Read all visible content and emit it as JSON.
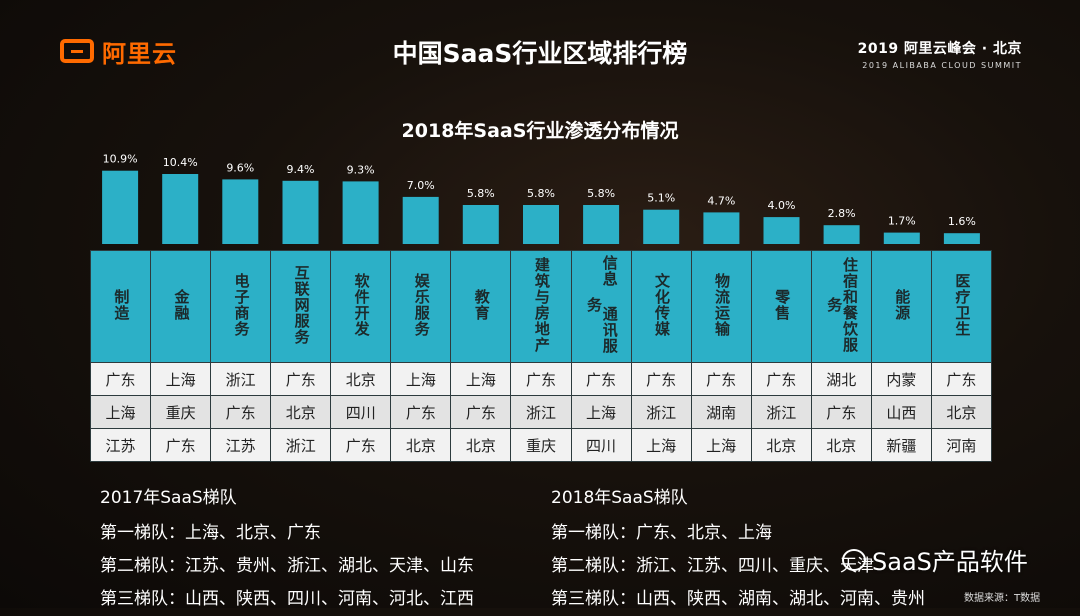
{
  "header": {
    "logo_text": "阿里云",
    "title": "中国SaaS行业区域排行榜",
    "summit_line1": "2019 阿里云峰会 · 北京",
    "summit_line2": "2019 ALIBABA CLOUD SUMMIT"
  },
  "colors": {
    "bar": "#2cb0c7",
    "accent": "#ff6a00"
  },
  "chart_data": {
    "type": "bar",
    "title": "2018年SaaS行业渗透分布情况",
    "categories": [
      "制造",
      "金融",
      "电子商务",
      "互联网服务",
      "软件开发",
      "娱乐服务",
      "教育",
      "建筑与房地产",
      "信息 通讯服务",
      "文化传媒",
      "物流运输",
      "零售",
      "住宿和餐饮服务",
      "能源",
      "医疗卫生"
    ],
    "values": [
      10.9,
      10.4,
      9.6,
      9.4,
      9.3,
      7.0,
      5.8,
      5.8,
      5.8,
      5.1,
      4.7,
      4.0,
      2.8,
      1.7,
      1.6
    ],
    "value_labels": [
      "10.9%",
      "10.4%",
      "9.6%",
      "9.4%",
      "9.3%",
      "7.0%",
      "5.8%",
      "5.8%",
      "5.8%",
      "5.1%",
      "4.7%",
      "4.0%",
      "2.8%",
      "1.7%",
      "1.6%"
    ],
    "unit": "%",
    "ylim": [
      0,
      11
    ],
    "grid": false
  },
  "table": {
    "headers": [
      "制造",
      "金融",
      "电子商务",
      "互联网服务",
      "软件开发",
      "娱乐服务",
      "教育",
      "建筑与房地产",
      "信息 通讯服务",
      "文化传媒",
      "物流运输",
      "零售",
      "住宿和餐饮服务",
      "能源",
      "医疗卫生"
    ],
    "rows": [
      [
        "广东",
        "上海",
        "浙江",
        "广东",
        "北京",
        "上海",
        "上海",
        "广东",
        "广东",
        "广东",
        "广东",
        "广东",
        "湖北",
        "内蒙",
        "广东"
      ],
      [
        "上海",
        "重庆",
        "广东",
        "北京",
        "四川",
        "广东",
        "广东",
        "浙江",
        "上海",
        "浙江",
        "湖南",
        "浙江",
        "广东",
        "山西",
        "北京"
      ],
      [
        "江苏",
        "广东",
        "江苏",
        "浙江",
        "广东",
        "北京",
        "北京",
        "重庆",
        "四川",
        "上海",
        "上海",
        "北京",
        "北京",
        "新疆",
        "河南"
      ]
    ]
  },
  "tiers_2017": {
    "title": "2017年SaaS梯队",
    "lines": [
      "第一梯队：上海、北京、广东",
      "第二梯队：江苏、贵州、浙江、湖北、天津、山东",
      "第三梯队：山西、陕西、四川、河南、河北、江西"
    ]
  },
  "tiers_2018": {
    "title": "2018年SaaS梯队",
    "lines": [
      "第一梯队：广东、北京、上海",
      "第二梯队：浙江、江苏、四川、重庆、天津",
      "第三梯队：山西、陕西、湖南、湖北、河南、贵州"
    ]
  },
  "footer": {
    "watermark": "SaaS产品软件",
    "source": "数据来源：T数据"
  }
}
